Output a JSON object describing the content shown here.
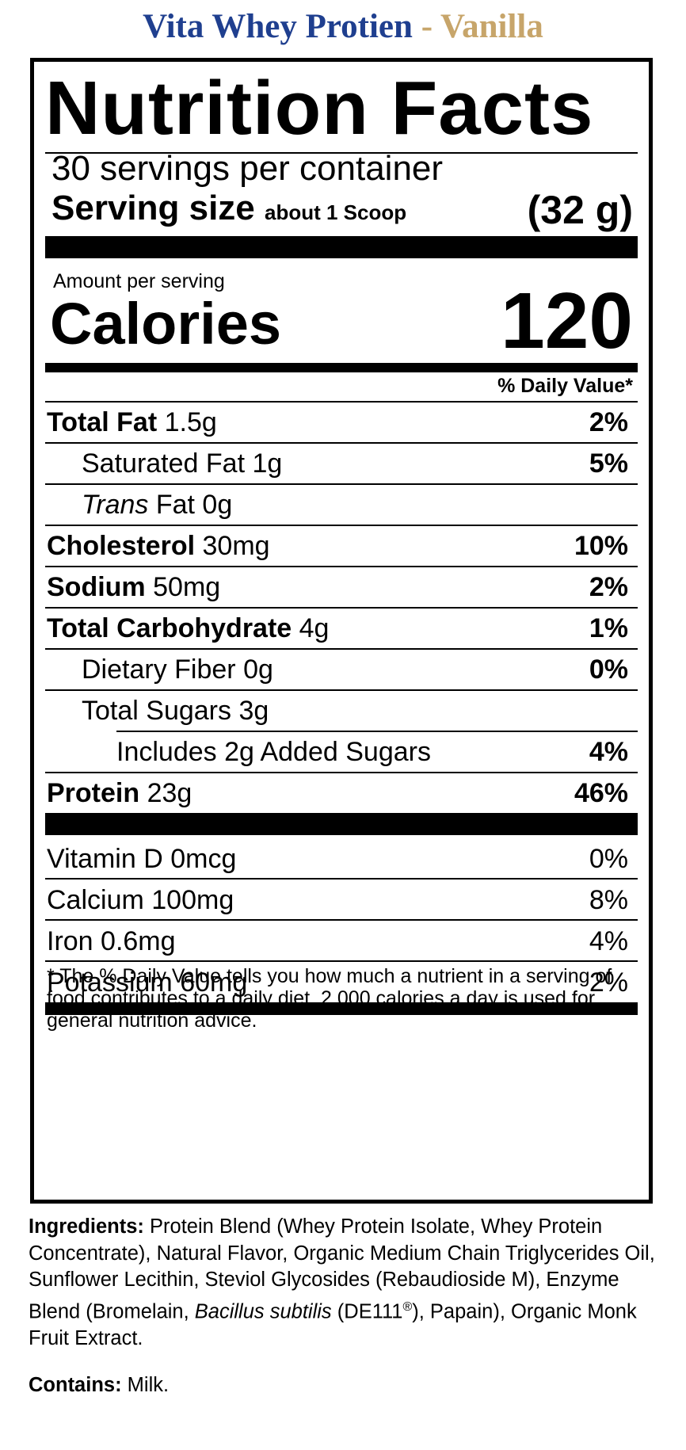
{
  "product": {
    "name": "Vita Whey Protien",
    "separator": " - ",
    "flavor": "Vanilla"
  },
  "heading": "Nutrition Facts",
  "servings_per_container": "30 servings per container",
  "serving_size": {
    "label": "Serving size",
    "detail": "about 1 Scoop",
    "grams": "(32 g)"
  },
  "amount_per_serving": "Amount per serving",
  "calories": {
    "label": "Calories",
    "value": "120"
  },
  "daily_value_header": "% Daily Value*",
  "nutrients": [
    {
      "name": "Total Fat",
      "amount": "1.5g",
      "dv": "2%"
    },
    {
      "name": "Saturated Fat",
      "amount": "1g",
      "dv": "5%"
    },
    {
      "name_italic": "Trans",
      "name": "Fat",
      "amount": "0g",
      "dv": ""
    },
    {
      "name": "Cholesterol",
      "amount": "30mg",
      "dv": "10%"
    },
    {
      "name": "Sodium",
      "amount": "50mg",
      "dv": "2%"
    },
    {
      "name": "Total Carbohydrate",
      "amount": "4g",
      "dv": "1%"
    },
    {
      "name": "Dietary Fiber",
      "amount": "0g",
      "dv": "0%"
    },
    {
      "name": "Total Sugars",
      "amount": "3g",
      "dv": ""
    },
    {
      "name": "Includes 2g Added Sugars",
      "amount": "",
      "dv": "4%"
    },
    {
      "name": "Protein",
      "amount": "23g",
      "dv": "46%"
    }
  ],
  "vitamins": [
    {
      "name": "Vitamin D",
      "amount": "0mcg",
      "dv": "0%"
    },
    {
      "name": "Calcium",
      "amount": "100mg",
      "dv": "8%"
    },
    {
      "name": "Iron",
      "amount": "0.6mg",
      "dv": "4%"
    },
    {
      "name": "Potassium",
      "amount": "60mg",
      "dv": "2%"
    }
  ],
  "footnote": "* The % Daily Value tells you how much a nutrient in a serving of food contributes to a daily diet. 2,000 calories a day is used for general nutrition advice.",
  "ingredients": {
    "label": "Ingredients:",
    "text_1": "Protein Blend (Whey Protein Isolate, Whey Protein Concentrate), Natural Flavor, Organic Medium Chain Triglycerides Oil, Sunflower Lecithin, Steviol Glycosides (Rebaudioside M), Enzyme Blend (Bromelain,",
    "italic_1": "Bacillus subtilis",
    "text_2": "(DE111",
    "reg_mark": "®",
    "text_3": "), Papain), Organic Monk Fruit Extract."
  },
  "contains": {
    "label": "Contains:",
    "text": "Milk."
  }
}
